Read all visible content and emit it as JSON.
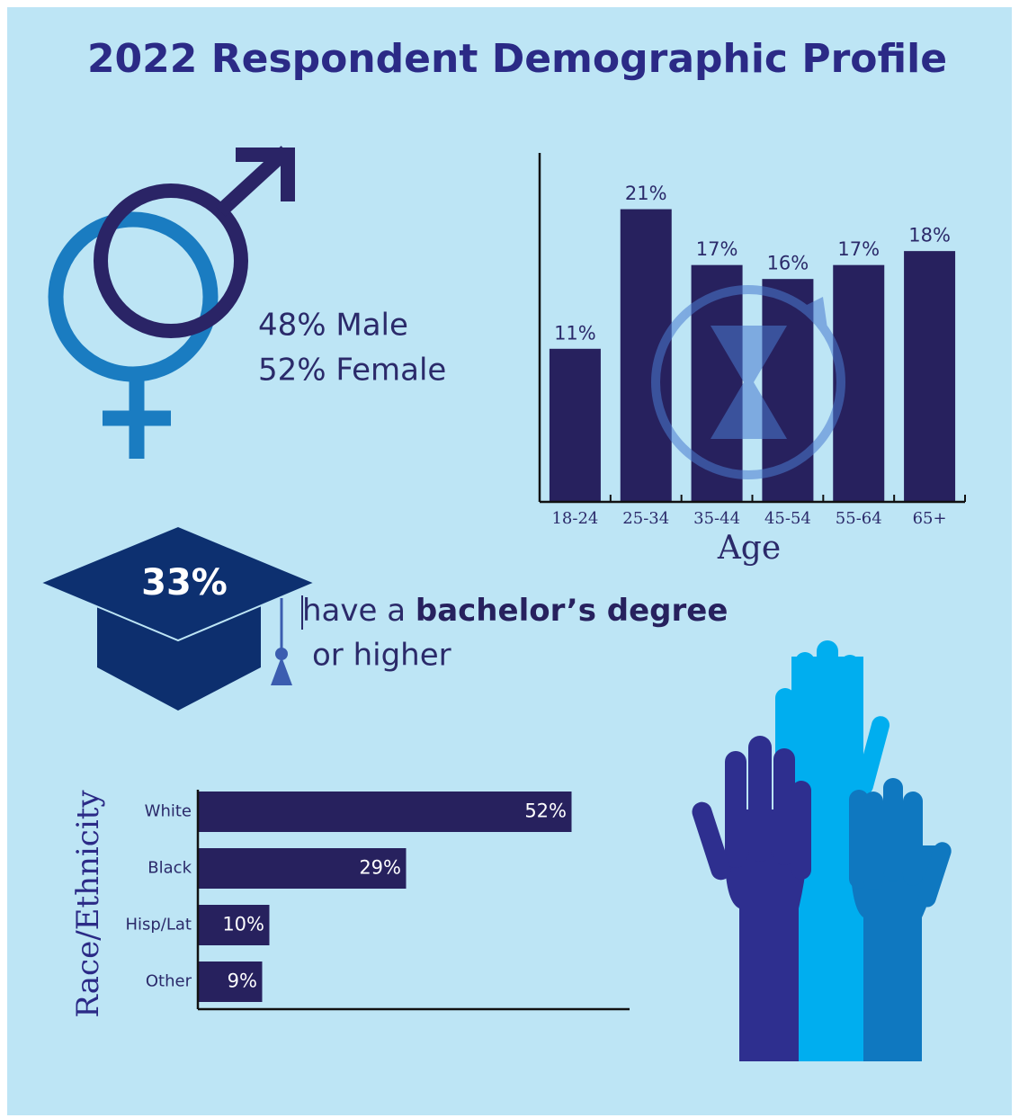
{
  "title": "2022 Respondent Demographic Profile",
  "gender": {
    "male": "48% Male",
    "female": "52% Female"
  },
  "education": {
    "percent": "33%",
    "text_before": "have a ",
    "text_bold": "bachelor’s degree",
    "text_after": "or higher"
  },
  "chart_data": [
    {
      "type": "bar",
      "categories": [
        "18-24",
        "25-34",
        "35-44",
        "45-54",
        "55-64",
        "65+"
      ],
      "values": [
        11,
        21,
        17,
        16,
        17,
        18
      ],
      "value_labels": [
        "11%",
        "21%",
        "17%",
        "16%",
        "17%",
        "18%"
      ],
      "x_label": "Age",
      "color": "#27215e",
      "ylim": [
        0,
        25
      ]
    },
    {
      "type": "hbar",
      "categories": [
        "White",
        "Black",
        "Hisp/Lat",
        "Other"
      ],
      "values": [
        52,
        29,
        10,
        9
      ],
      "value_labels": [
        "52%",
        "29%",
        "10%",
        "9%"
      ],
      "y_label": "Race/Ethnicity",
      "color": "#27215e",
      "xlim": [
        0,
        60
      ]
    }
  ]
}
